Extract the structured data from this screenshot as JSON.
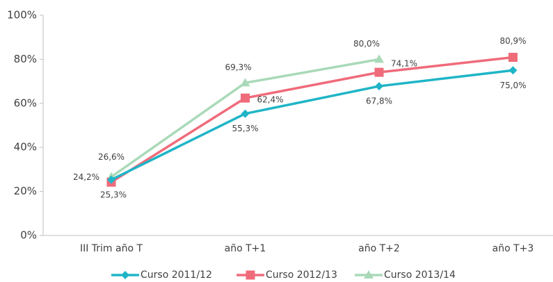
{
  "chart_data": {
    "type": "line",
    "categories": [
      "III Trim año T",
      "año T+1",
      "año T+2",
      "año T+3"
    ],
    "series": [
      {
        "name": "Curso 2011/12",
        "color": "#1fb5c7",
        "marker": "diamond",
        "values": [
          25.3,
          55.3,
          67.8,
          75.0
        ],
        "value_labels": [
          "25,3%",
          "55,3%",
          "67,8%",
          "75,0%"
        ]
      },
      {
        "name": "Curso 2012/13",
        "color": "#f06b7a",
        "marker": "square",
        "values": [
          24.2,
          62.4,
          74.1,
          80.9
        ],
        "value_labels": [
          "24,2%",
          "62,4%",
          "74,1%",
          "80,9%"
        ]
      },
      {
        "name": "Curso 2013/14",
        "color": "#a9d9b8",
        "marker": "triangle",
        "values": [
          26.6,
          69.3,
          80.0,
          null
        ],
        "value_labels": [
          "26,6%",
          "69,3%",
          "80,0%",
          null
        ]
      }
    ],
    "ylim": [
      0,
      100
    ],
    "yticks": [
      {
        "value": 0,
        "label": "0%"
      },
      {
        "value": 20,
        "label": "20%"
      },
      {
        "value": 40,
        "label": "40%"
      },
      {
        "value": 60,
        "label": "60%"
      },
      {
        "value": 80,
        "label": "80%"
      },
      {
        "value": 100,
        "label": "100%"
      }
    ],
    "legend": "bottom"
  }
}
